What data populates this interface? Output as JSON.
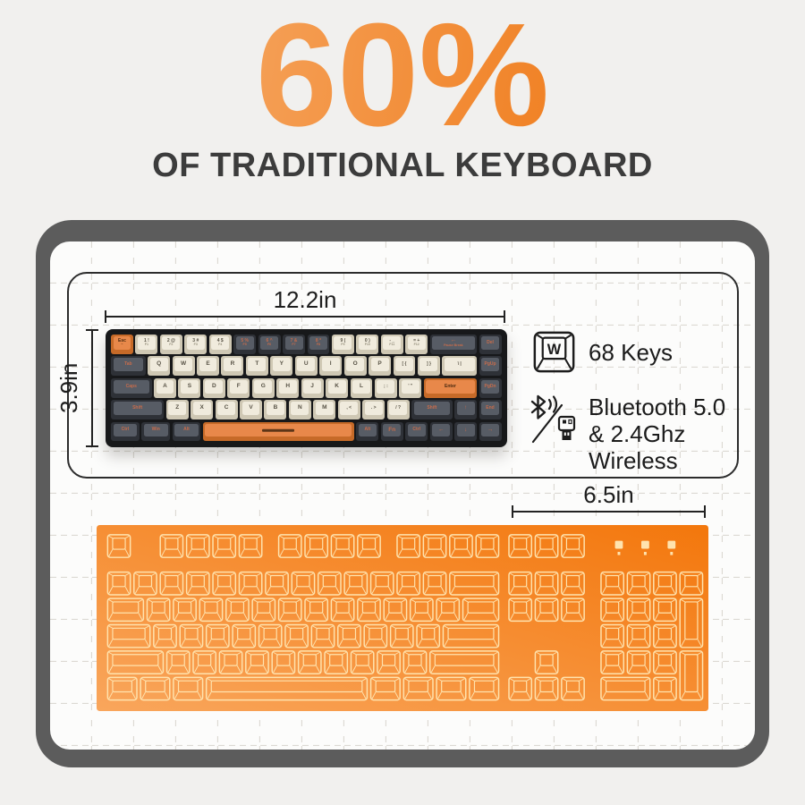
{
  "header": {
    "title": "60%",
    "subtitle": "OF TRADITIONAL KEYBOARD"
  },
  "dimensions": {
    "width_label": "12.2in",
    "height_label": "3.9in",
    "extra_label": "6.5in"
  },
  "specs": {
    "keycount": {
      "icon": "keycap-w-icon",
      "keycap_letter": "W",
      "label": "68 Keys"
    },
    "wireless": {
      "icon": "bluetooth-dongle-icon",
      "line1": "Bluetooth 5.0",
      "line2": "& 2.4Ghz Wireless"
    }
  },
  "colors": {
    "accent_orange": "#f07c12",
    "title_gradient_from": "#f6ae6e",
    "title_gradient_to": "#ed6f06",
    "frame_gray": "#5c5c5c",
    "panel_border": "#2c2c2c",
    "grid_line": "#dcd9d3",
    "wireframe_stroke": "#ffe3ae",
    "wireframe_fill_from": "#f9a65c",
    "wireframe_fill_to": "#f3770c",
    "case_black": "#17181a",
    "key_cream_top": "#f0ebdd",
    "key_dark_top": "#575c65",
    "key_orange_top": "#e8884a"
  },
  "compact_keyboard": {
    "key_count": 68,
    "rows": [
      [
        {
          "l": "Esc",
          "s": "~",
          "c": "o"
        },
        {
          "l": "1 !",
          "s": "F1"
        },
        {
          "l": "2 @",
          "s": "F2"
        },
        {
          "l": "3 #",
          "s": "F3"
        },
        {
          "l": "4 $",
          "s": "F4"
        },
        {
          "l": "5 %",
          "s": "F5",
          "c": "d"
        },
        {
          "l": "6 ^",
          "s": "F6",
          "c": "d"
        },
        {
          "l": "7 &",
          "s": "F7",
          "c": "d"
        },
        {
          "l": "8 *",
          "s": "F8",
          "c": "d"
        },
        {
          "l": "9 (",
          "s": "F9"
        },
        {
          "l": "0 )",
          "s": "F10"
        },
        {
          "l": "- _",
          "s": "F11"
        },
        {
          "l": "= +",
          "s": "F12"
        },
        {
          "l": "←",
          "s": "Pause Break",
          "c": "d",
          "w": 2
        },
        {
          "l": "Del",
          "c": "d"
        }
      ],
      [
        {
          "l": "Tab",
          "c": "d",
          "w": 1.5
        },
        {
          "l": "Q"
        },
        {
          "l": "W"
        },
        {
          "l": "E"
        },
        {
          "l": "R"
        },
        {
          "l": "T"
        },
        {
          "l": "Y"
        },
        {
          "l": "U"
        },
        {
          "l": "I"
        },
        {
          "l": "O"
        },
        {
          "l": "P"
        },
        {
          "l": "[ {"
        },
        {
          "l": "] }"
        },
        {
          "l": "\\ |",
          "w": 1.5
        },
        {
          "l": "PgUp",
          "c": "d"
        }
      ],
      [
        {
          "l": "Caps",
          "c": "d",
          "w": 1.75
        },
        {
          "l": "A"
        },
        {
          "l": "S"
        },
        {
          "l": "D"
        },
        {
          "l": "F"
        },
        {
          "l": "G"
        },
        {
          "l": "H"
        },
        {
          "l": "J"
        },
        {
          "l": "K"
        },
        {
          "l": "L"
        },
        {
          "l": "; :"
        },
        {
          "l": "' \""
        },
        {
          "l": "Enter",
          "c": "o",
          "w": 2.25
        },
        {
          "l": "PgDn",
          "c": "d"
        }
      ],
      [
        {
          "l": "Shift",
          "c": "d",
          "w": 2.25
        },
        {
          "l": "Z"
        },
        {
          "l": "X"
        },
        {
          "l": "C"
        },
        {
          "l": "V"
        },
        {
          "l": "B"
        },
        {
          "l": "N"
        },
        {
          "l": "M"
        },
        {
          "l": ", <"
        },
        {
          "l": ". >"
        },
        {
          "l": "/ ?"
        },
        {
          "l": "Shift",
          "c": "d",
          "w": 1.75
        },
        {
          "l": "↑",
          "c": "d"
        },
        {
          "l": "End",
          "c": "d"
        }
      ],
      [
        {
          "l": "Ctrl",
          "c": "d",
          "w": 1.25
        },
        {
          "l": "Win",
          "c": "d",
          "w": 1.25
        },
        {
          "l": "Alt",
          "c": "d",
          "w": 1.25
        },
        {
          "l": "",
          "c": "o",
          "w": 6.25,
          "bar": true
        },
        {
          "l": "Alt",
          "c": "d"
        },
        {
          "l": "Fn",
          "c": "d"
        },
        {
          "l": "Ctrl",
          "c": "d"
        },
        {
          "l": "←",
          "c": "d"
        },
        {
          "l": "↓",
          "c": "d"
        },
        {
          "l": "→",
          "c": "d"
        }
      ]
    ]
  },
  "traditional_keyboard": {
    "led_indicators": [
      19.35,
      20.35,
      21.35
    ],
    "rows": [
      {
        "y": 0,
        "keys": [
          [
            0,
            1
          ],
          [
            2,
            1
          ],
          [
            3,
            1
          ],
          [
            4,
            1
          ],
          [
            5,
            1
          ],
          [
            6.5,
            1
          ],
          [
            7.5,
            1
          ],
          [
            8.5,
            1
          ],
          [
            9.5,
            1
          ],
          [
            11,
            1
          ],
          [
            12,
            1
          ],
          [
            13,
            1
          ],
          [
            14,
            1
          ],
          [
            15.25,
            1
          ],
          [
            16.25,
            1
          ],
          [
            17.25,
            1
          ]
        ]
      },
      {
        "y": 1.42,
        "keys": [
          [
            0,
            1
          ],
          [
            1,
            1
          ],
          [
            2,
            1
          ],
          [
            3,
            1
          ],
          [
            4,
            1
          ],
          [
            5,
            1
          ],
          [
            6,
            1
          ],
          [
            7,
            1
          ],
          [
            8,
            1
          ],
          [
            9,
            1
          ],
          [
            10,
            1
          ],
          [
            11,
            1
          ],
          [
            12,
            1
          ],
          [
            13,
            2
          ],
          [
            15.25,
            1
          ],
          [
            16.25,
            1
          ],
          [
            17.25,
            1
          ],
          [
            18.75,
            1
          ],
          [
            19.75,
            1
          ],
          [
            20.75,
            1
          ],
          [
            21.75,
            1
          ]
        ]
      },
      {
        "y": 2.42,
        "keys": [
          [
            0,
            1.5
          ],
          [
            1.5,
            1
          ],
          [
            2.5,
            1
          ],
          [
            3.5,
            1
          ],
          [
            4.5,
            1
          ],
          [
            5.5,
            1
          ],
          [
            6.5,
            1
          ],
          [
            7.5,
            1
          ],
          [
            8.5,
            1
          ],
          [
            9.5,
            1
          ],
          [
            10.5,
            1
          ],
          [
            11.5,
            1
          ],
          [
            12.5,
            1
          ],
          [
            13.5,
            1.5
          ],
          [
            15.25,
            1
          ],
          [
            16.25,
            1
          ],
          [
            17.25,
            1
          ],
          [
            18.75,
            1
          ],
          [
            19.75,
            1
          ],
          [
            20.75,
            1
          ],
          [
            21.75,
            1,
            2
          ]
        ]
      },
      {
        "y": 3.42,
        "keys": [
          [
            0,
            1.75
          ],
          [
            1.75,
            1
          ],
          [
            2.75,
            1
          ],
          [
            3.75,
            1
          ],
          [
            4.75,
            1
          ],
          [
            5.75,
            1
          ],
          [
            6.75,
            1
          ],
          [
            7.75,
            1
          ],
          [
            8.75,
            1
          ],
          [
            9.75,
            1
          ],
          [
            10.75,
            1
          ],
          [
            11.75,
            1
          ],
          [
            12.75,
            2.25
          ],
          [
            18.75,
            1
          ],
          [
            19.75,
            1
          ],
          [
            20.75,
            1
          ]
        ]
      },
      {
        "y": 4.42,
        "keys": [
          [
            0,
            2.25
          ],
          [
            2.25,
            1
          ],
          [
            3.25,
            1
          ],
          [
            4.25,
            1
          ],
          [
            5.25,
            1
          ],
          [
            6.25,
            1
          ],
          [
            7.25,
            1
          ],
          [
            8.25,
            1
          ],
          [
            9.25,
            1
          ],
          [
            10.25,
            1
          ],
          [
            11.25,
            1
          ],
          [
            12.25,
            2.75
          ],
          [
            16.25,
            1
          ],
          [
            18.75,
            1
          ],
          [
            19.75,
            1
          ],
          [
            20.75,
            1
          ],
          [
            21.75,
            1,
            2
          ]
        ]
      },
      {
        "y": 5.42,
        "keys": [
          [
            0,
            1.25
          ],
          [
            1.25,
            1.25
          ],
          [
            2.5,
            1.25
          ],
          [
            3.75,
            6.25
          ],
          [
            10,
            1.25
          ],
          [
            11.25,
            1.25
          ],
          [
            12.5,
            1.25
          ],
          [
            13.75,
            1.25
          ],
          [
            15.25,
            1
          ],
          [
            16.25,
            1
          ],
          [
            17.25,
            1
          ],
          [
            18.75,
            2
          ],
          [
            20.75,
            1
          ]
        ]
      }
    ]
  }
}
